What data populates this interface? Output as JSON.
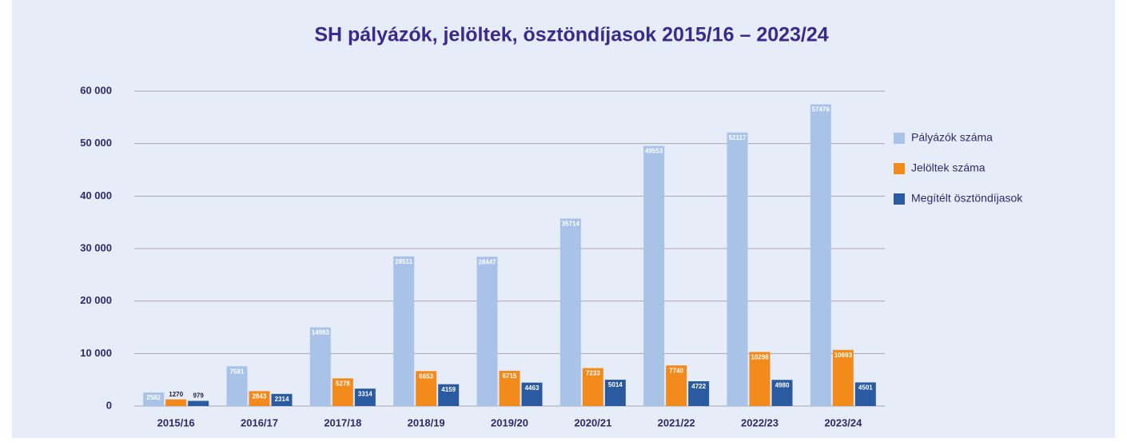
{
  "chart_data": {
    "type": "bar",
    "title": "SH pályázók, jelöltek, ösztöndíjasok 2015/16 – 2023/24",
    "categories": [
      "2015/16",
      "2016/17",
      "2017/18",
      "2018/19",
      "2019/20",
      "2020/21",
      "2021/22",
      "2022/23",
      "2023/24"
    ],
    "series": [
      {
        "name": "Pályázók száma",
        "color": "#a9c3e8",
        "values": [
          2582,
          7581,
          14983,
          28511,
          28447,
          35714,
          49553,
          52117,
          57476
        ]
      },
      {
        "name": "Jelöltek száma",
        "color": "#f28a1c",
        "values": [
          1270,
          2843,
          5278,
          6653,
          6715,
          7233,
          7740,
          10298,
          10693
        ]
      },
      {
        "name": "Megítélt ösztöndíjasok",
        "color": "#2a5aa0",
        "values": [
          979,
          2314,
          3314,
          4159,
          4463,
          5014,
          4722,
          4980,
          4501
        ]
      }
    ],
    "ylim": [
      0,
      60000
    ],
    "yticks": [
      0,
      {
        "value": 10000,
        "label": "10 000"
      },
      {
        "value": 20000,
        "label": "20 000"
      },
      {
        "value": 30000,
        "label": "30 000"
      },
      {
        "value": 40000,
        "label": "40 000"
      },
      {
        "value": 50000,
        "label": "50 000"
      },
      {
        "value": 60000,
        "label": "60 000"
      }
    ],
    "grid": true,
    "legend": "right"
  }
}
